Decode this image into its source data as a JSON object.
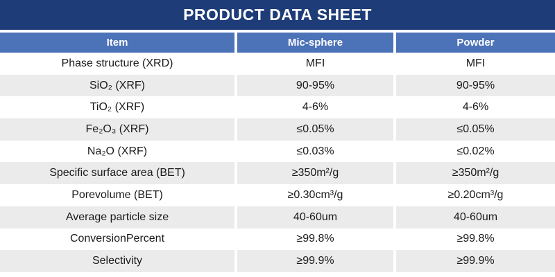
{
  "title": "PRODUCT DATA SHEET",
  "colors": {
    "title_bar": "#1E3C78",
    "header": "#4C72B8",
    "row_alt": "#EBEBEB",
    "text": "#1A1A1A"
  },
  "table": {
    "headers": [
      "Item",
      "Mic-sphere",
      "Powder"
    ],
    "rows": [
      {
        "item": "Phase structure (XRD)",
        "mic_sphere": "MFI",
        "powder": "MFI"
      },
      {
        "item": "SiO₂ (XRF)",
        "mic_sphere": "90-95%",
        "powder": "90-95%"
      },
      {
        "item": "TiO₂ (XRF)",
        "mic_sphere": "4-6%",
        "powder": "4-6%"
      },
      {
        "item": "Fe₂O₃ (XRF)",
        "mic_sphere": "≤0.05%",
        "powder": "≤0.05%"
      },
      {
        "item": "Na₂O (XRF)",
        "mic_sphere": "≤0.03%",
        "powder": "≤0.02%"
      },
      {
        "item": "Specific surface area (BET)",
        "mic_sphere": "≥350m²/g",
        "powder": "≥350m²/g"
      },
      {
        "item": "Porevolume (BET)",
        "mic_sphere": "≥0.30cm³/g",
        "powder": "≥0.20cm³/g"
      },
      {
        "item": "Average particle size",
        "mic_sphere": "40-60um",
        "powder": "40-60um"
      },
      {
        "item": "ConversionPercent",
        "mic_sphere": "≥99.8%",
        "powder": "≥99.8%"
      },
      {
        "item": "Selectivity",
        "mic_sphere": "≥99.9%",
        "powder": "≥99.9%"
      }
    ]
  }
}
